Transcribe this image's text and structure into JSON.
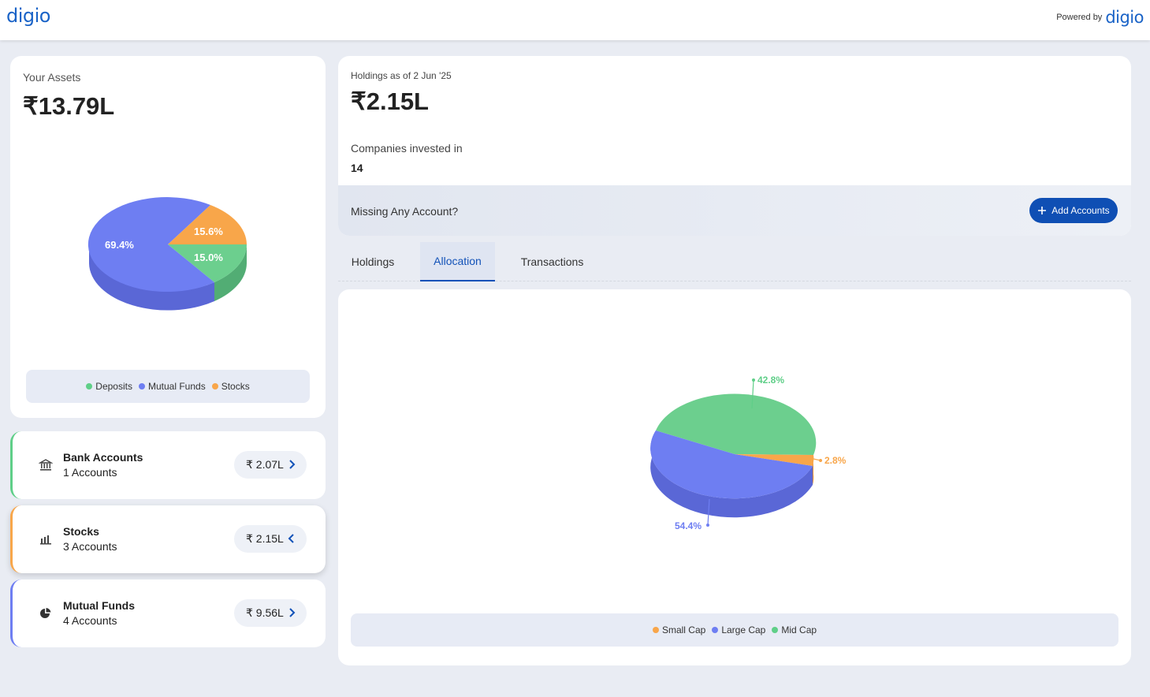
{
  "header": {
    "logo": "digio",
    "powered_label": "Powered by",
    "powered_logo": "digio"
  },
  "assets": {
    "label": "Your Assets",
    "total": "₹13.79L",
    "chart_data": {
      "type": "pie",
      "title": "",
      "slices": [
        {
          "label": "Mutual Funds",
          "value": 69.4,
          "color": "#6e7ef2"
        },
        {
          "label": "Stocks",
          "value": 15.6,
          "color": "#f8a64a"
        },
        {
          "label": "Deposits",
          "value": 15.0,
          "color": "#6ccf8e"
        }
      ],
      "data_labels": [
        "69.4%",
        "15.6%",
        "15.0%"
      ]
    },
    "legend": [
      {
        "label": "Deposits",
        "color": "#5fcf88"
      },
      {
        "label": "Mutual Funds",
        "color": "#6e7ef2"
      },
      {
        "label": "Stocks",
        "color": "#f8a64a"
      }
    ]
  },
  "accounts": [
    {
      "name": "Bank Accounts",
      "count": "1 Accounts",
      "value": "₹ 2.07L",
      "icon": "bank-icon",
      "accent": "#5fcf88",
      "chevron": "right"
    },
    {
      "name": "Stocks",
      "count": "3 Accounts",
      "value": "₹ 2.15L",
      "icon": "bar-chart-icon",
      "accent": "#f8a64a",
      "chevron": "left"
    },
    {
      "name": "Mutual Funds",
      "count": "4 Accounts",
      "value": "₹ 9.56L",
      "icon": "pie-chart-icon",
      "accent": "#6e7ef2",
      "chevron": "right"
    }
  ],
  "holdings": {
    "as_of": "Holdings as of 2 Jun '25",
    "total": "₹2.15L",
    "companies_label": "Companies invested in",
    "companies_value": "14"
  },
  "missing": {
    "text": "Missing Any Account?",
    "button": "Add Accounts"
  },
  "tabs": [
    {
      "label": "Holdings",
      "active": false
    },
    {
      "label": "Allocation",
      "active": true
    },
    {
      "label": "Transactions",
      "active": false
    }
  ],
  "allocation": {
    "chart_data": {
      "type": "pie",
      "title": "",
      "slices": [
        {
          "label": "Mid Cap",
          "value": 42.8,
          "color": "#6ccf8e"
        },
        {
          "label": "Small Cap",
          "value": 2.8,
          "color": "#f8a64a"
        },
        {
          "label": "Large Cap",
          "value": 54.4,
          "color": "#6e7ef2"
        }
      ],
      "data_labels": [
        "42.8%",
        "2.8%",
        "54.4%"
      ]
    },
    "legend": [
      {
        "label": "Small Cap",
        "color": "#f8a64a"
      },
      {
        "label": "Large Cap",
        "color": "#6e7ef2"
      },
      {
        "label": "Mid Cap",
        "color": "#5fcf88"
      }
    ]
  }
}
